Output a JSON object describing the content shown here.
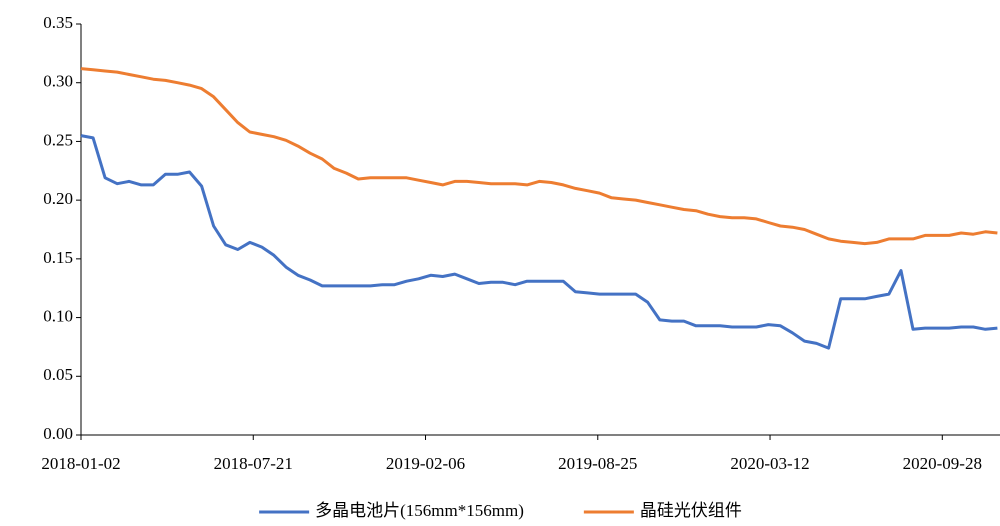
{
  "chart_data": {
    "type": "line",
    "x": [
      "2018-01-02",
      "2018-01-16",
      "2018-01-30",
      "2018-02-13",
      "2018-02-27",
      "2018-03-13",
      "2018-03-27",
      "2018-04-10",
      "2018-04-24",
      "2018-05-08",
      "2018-05-22",
      "2018-06-05",
      "2018-06-19",
      "2018-07-03",
      "2018-07-17",
      "2018-07-31",
      "2018-08-14",
      "2018-08-28",
      "2018-09-11",
      "2018-09-25",
      "2018-10-09",
      "2018-10-23",
      "2018-11-06",
      "2018-11-20",
      "2018-12-04",
      "2018-12-18",
      "2019-01-01",
      "2019-01-15",
      "2019-01-29",
      "2019-02-12",
      "2019-02-26",
      "2019-03-12",
      "2019-03-26",
      "2019-04-09",
      "2019-04-23",
      "2019-05-07",
      "2019-05-21",
      "2019-06-04",
      "2019-06-18",
      "2019-07-02",
      "2019-07-16",
      "2019-07-30",
      "2019-08-13",
      "2019-08-27",
      "2019-09-10",
      "2019-09-24",
      "2019-10-08",
      "2019-10-22",
      "2019-11-05",
      "2019-11-19",
      "2019-12-03",
      "2019-12-17",
      "2019-12-31",
      "2020-01-14",
      "2020-01-28",
      "2020-02-11",
      "2020-02-25",
      "2020-03-10",
      "2020-03-24",
      "2020-04-07",
      "2020-04-21",
      "2020-05-05",
      "2020-05-19",
      "2020-06-02",
      "2020-06-16",
      "2020-06-30",
      "2020-07-14",
      "2020-07-28",
      "2020-08-11",
      "2020-08-25",
      "2020-09-08",
      "2020-09-22",
      "2020-10-06",
      "2020-10-20",
      "2020-11-03",
      "2020-11-17",
      "2020-12-01"
    ],
    "series": [
      {
        "name": "多晶电池片(156mm*156mm)",
        "color": "#4472c4",
        "values": [
          0.255,
          0.253,
          0.219,
          0.214,
          0.216,
          0.213,
          0.213,
          0.222,
          0.222,
          0.224,
          0.212,
          0.178,
          0.162,
          0.158,
          0.164,
          0.16,
          0.153,
          0.143,
          0.136,
          0.132,
          0.127,
          0.127,
          0.127,
          0.127,
          0.127,
          0.128,
          0.128,
          0.131,
          0.133,
          0.136,
          0.135,
          0.137,
          0.133,
          0.129,
          0.13,
          0.13,
          0.128,
          0.131,
          0.131,
          0.131,
          0.131,
          0.122,
          0.121,
          0.12,
          0.12,
          0.12,
          0.12,
          0.113,
          0.098,
          0.097,
          0.097,
          0.093,
          0.093,
          0.093,
          0.092,
          0.092,
          0.092,
          0.094,
          0.093,
          0.087,
          0.08,
          0.078,
          0.074,
          0.116,
          0.116,
          0.116,
          0.118,
          0.12,
          0.14,
          0.09,
          0.091,
          0.091,
          0.091,
          0.092,
          0.092,
          0.09,
          0.091
        ]
      },
      {
        "name": "晶硅光伏组件",
        "color": "#ed7d31",
        "values": [
          0.312,
          0.311,
          0.31,
          0.309,
          0.307,
          0.305,
          0.303,
          0.302,
          0.3,
          0.298,
          0.295,
          0.288,
          0.277,
          0.266,
          0.258,
          0.256,
          0.254,
          0.251,
          0.246,
          0.24,
          0.235,
          0.227,
          0.223,
          0.218,
          0.219,
          0.219,
          0.219,
          0.219,
          0.217,
          0.215,
          0.213,
          0.216,
          0.216,
          0.215,
          0.214,
          0.214,
          0.214,
          0.213,
          0.216,
          0.215,
          0.213,
          0.21,
          0.208,
          0.206,
          0.202,
          0.201,
          0.2,
          0.198,
          0.196,
          0.194,
          0.192,
          0.191,
          0.188,
          0.186,
          0.185,
          0.185,
          0.184,
          0.181,
          0.178,
          0.177,
          0.175,
          0.171,
          0.167,
          0.165,
          0.164,
          0.163,
          0.164,
          0.167,
          0.167,
          0.167,
          0.17,
          0.17,
          0.17,
          0.172,
          0.171,
          0.173,
          0.172
        ]
      }
    ],
    "xlim": [
      "2018-01-02",
      "2020-12-04"
    ],
    "xticks": [
      "2018-01-02",
      "2018-07-21",
      "2019-02-06",
      "2019-08-25",
      "2020-03-12",
      "2020-09-28"
    ],
    "ylim": [
      0,
      0.35
    ],
    "yticks": [
      {
        "value": 0,
        "label": "0.00"
      },
      {
        "value": 0.05,
        "label": "0.05"
      },
      {
        "value": 0.1,
        "label": "0.10"
      },
      {
        "value": 0.15,
        "label": "0.15"
      },
      {
        "value": 0.2,
        "label": "0.20"
      },
      {
        "value": 0.25,
        "label": "0.25"
      },
      {
        "value": 0.3,
        "label": "0.30"
      },
      {
        "value": 0.35,
        "label": "0.35"
      }
    ],
    "grid": false,
    "legend": "bottom"
  }
}
